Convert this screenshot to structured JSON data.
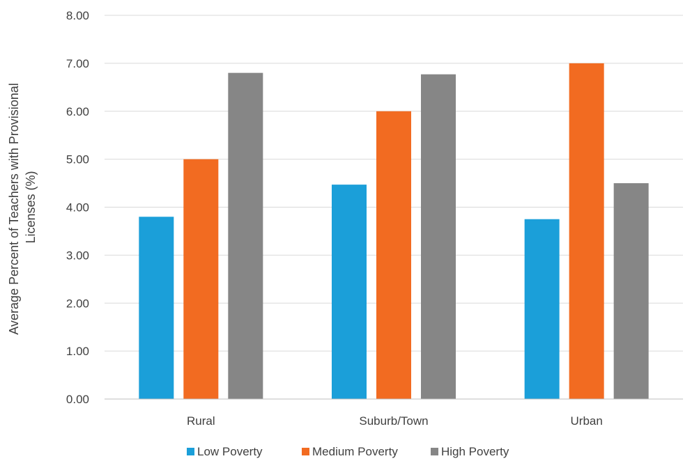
{
  "chart_data": {
    "type": "bar",
    "title": "",
    "xlabel": "",
    "ylabel_lines": [
      "Average Percent of Teachers with Provisional",
      "Licenses (%)"
    ],
    "ylim": [
      0,
      8
    ],
    "y_ticks": [
      "0.00",
      "1.00",
      "2.00",
      "3.00",
      "4.00",
      "5.00",
      "6.00",
      "7.00",
      "8.00"
    ],
    "categories": [
      "Rural",
      "Suburb/Town",
      "Urban"
    ],
    "series": [
      {
        "name": "Low Poverty",
        "color": "#1B9FD9",
        "values": [
          3.8,
          4.47,
          3.75
        ]
      },
      {
        "name": "Medium Poverty",
        "color": "#F26B21",
        "values": [
          5.0,
          6.0,
          7.0
        ]
      },
      {
        "name": "High Poverty",
        "color": "#868686",
        "values": [
          6.8,
          6.77,
          4.5
        ]
      }
    ],
    "grid": true,
    "legend_position": "bottom"
  }
}
